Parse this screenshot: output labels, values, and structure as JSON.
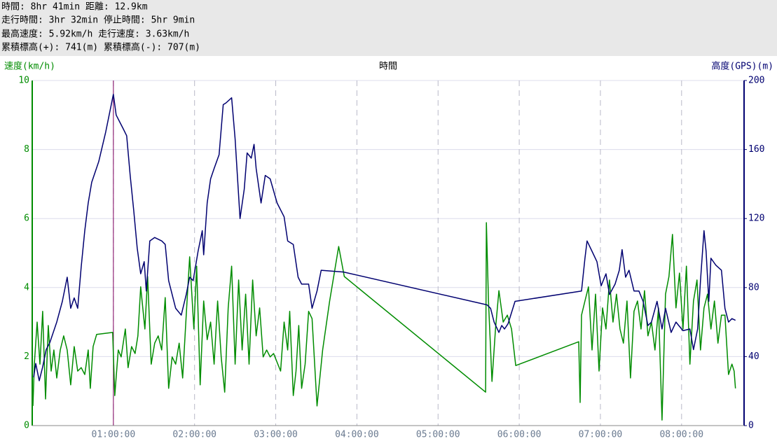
{
  "header": {
    "lines": [
      "時間: 8hr 41min 距離: 12.9km",
      "走行時間: 3hr 32min 停止時間: 5hr 9min",
      "最高速度: 5.92km/h 走行速度: 3.63km/h",
      "累積標高(+): 741(m) 累積標高(-): 707(m)"
    ]
  },
  "chart_data": {
    "type": "line",
    "x_label": "時間",
    "y_label": "速度(km/h)",
    "y2_label": "高度(GPS)(m)",
    "xlim": [
      0,
      8.77
    ],
    "xticks": [
      {
        "value": 1,
        "label": "01:00:00"
      },
      {
        "value": 2,
        "label": "02:00:00"
      },
      {
        "value": 3,
        "label": "03:00:00"
      },
      {
        "value": 4,
        "label": "04:00:00"
      },
      {
        "value": 5,
        "label": "05:00:00"
      },
      {
        "value": 6,
        "label": "06:00:00"
      },
      {
        "value": 7,
        "label": "07:00:00"
      },
      {
        "value": 8,
        "label": "08:00:00"
      }
    ],
    "ylim": [
      0,
      10
    ],
    "yticks": [
      0,
      2,
      4,
      6,
      8,
      10
    ],
    "y2lim": [
      0,
      200
    ],
    "y2ticks": [
      0,
      40,
      80,
      120,
      160,
      200
    ],
    "grid": true,
    "y_color": "#008c00",
    "y2_color": "#000070",
    "cursor_x": 1,
    "cursor_color": "#800060",
    "series": [
      {
        "color": "#000070",
        "axis": "y2",
        "x": [
          0.017,
          0.043,
          0.086,
          0.129,
          0.172,
          0.216,
          0.302,
          0.371,
          0.431,
          0.474,
          0.517,
          0.56,
          0.603,
          0.647,
          0.69,
          0.733,
          0.819,
          0.905,
          0.974,
          1.0,
          1.034,
          1.121,
          1.164,
          1.207,
          1.25,
          1.293,
          1.336,
          1.379,
          1.405,
          1.448,
          1.509,
          1.595,
          1.638,
          1.681,
          1.767,
          1.836,
          1.897,
          1.94,
          1.983,
          2.043,
          2.095,
          2.112,
          2.155,
          2.198,
          2.241,
          2.302,
          2.353,
          2.388,
          2.457,
          2.5,
          2.56,
          2.612,
          2.647,
          2.698,
          2.733,
          2.759,
          2.819,
          2.871,
          2.931,
          3.017,
          3.103,
          3.147,
          3.216,
          3.276,
          3.319,
          3.405,
          3.448,
          3.509,
          3.56,
          3.836,
          5.603,
          5.647,
          5.69,
          5.75,
          5.784,
          5.819,
          5.862,
          5.948,
          6.767,
          6.81,
          6.836,
          6.897,
          6.957,
          7.009,
          7.069,
          7.112,
          7.181,
          7.233,
          7.267,
          7.31,
          7.353,
          7.414,
          7.474,
          7.526,
          7.586,
          7.629,
          7.698,
          7.759,
          7.802,
          7.871,
          7.931,
          8.017,
          8.103,
          8.147,
          8.198,
          8.233,
          8.276,
          8.302,
          8.336,
          8.362,
          8.422,
          8.491,
          8.534,
          8.578,
          8.621,
          8.664
        ],
        "values": [
          28,
          36,
          26,
          34,
          44,
          48,
          60,
          72,
          86,
          68,
          74,
          68,
          92,
          113,
          129,
          141,
          153,
          170,
          186,
          192,
          180,
          172,
          168,
          145,
          125,
          103,
          88,
          95,
          78,
          107,
          109,
          107,
          105,
          84,
          68,
          64,
          76,
          86,
          84,
          101,
          113,
          99,
          129,
          143,
          149,
          157,
          186,
          187,
          190,
          166,
          120,
          137,
          158,
          155,
          163,
          149,
          129,
          145,
          143,
          129,
          121,
          107,
          105,
          86,
          82,
          82,
          68,
          78,
          90,
          89,
          70,
          68,
          60,
          54,
          58,
          56,
          59,
          72,
          78,
          97,
          107,
          101,
          95,
          81,
          88,
          76,
          82,
          90,
          102,
          86,
          90,
          78,
          78,
          72,
          58,
          60,
          72,
          56,
          68,
          54,
          60,
          55,
          56,
          44,
          56,
          84,
          113,
          101,
          72,
          97,
          93,
          90,
          68,
          60,
          62,
          61
        ]
      },
      {
        "color": "#008c00",
        "axis": "y",
        "x": [
          0.009,
          0.026,
          0.06,
          0.095,
          0.129,
          0.164,
          0.198,
          0.233,
          0.267,
          0.302,
          0.345,
          0.388,
          0.431,
          0.474,
          0.517,
          0.56,
          0.603,
          0.647,
          0.69,
          0.716,
          0.75,
          0.793,
          0.991,
          1.017,
          1.06,
          1.095,
          1.147,
          1.181,
          1.224,
          1.267,
          1.302,
          1.336,
          1.362,
          1.388,
          1.422,
          1.466,
          1.509,
          1.552,
          1.595,
          1.638,
          1.681,
          1.724,
          1.767,
          1.81,
          1.853,
          1.897,
          1.94,
          1.966,
          1.991,
          2.026,
          2.069,
          2.112,
          2.155,
          2.198,
          2.241,
          2.284,
          2.328,
          2.371,
          2.414,
          2.457,
          2.5,
          2.543,
          2.586,
          2.629,
          2.672,
          2.716,
          2.759,
          2.802,
          2.845,
          2.888,
          2.931,
          2.974,
          3.06,
          3.103,
          3.147,
          3.172,
          3.216,
          3.25,
          3.284,
          3.319,
          3.362,
          3.405,
          3.448,
          3.509,
          3.578,
          3.664,
          3.776,
          3.845,
          5.586,
          5.595,
          5.621,
          5.664,
          5.707,
          5.75,
          5.802,
          5.853,
          5.905,
          5.957,
          6.733,
          6.75,
          6.767,
          6.81,
          6.853,
          6.897,
          6.94,
          6.983,
          7.026,
          7.069,
          7.112,
          7.155,
          7.198,
          7.241,
          7.284,
          7.328,
          7.371,
          7.414,
          7.457,
          7.5,
          7.543,
          7.586,
          7.629,
          7.672,
          7.716,
          7.759,
          7.802,
          7.845,
          7.888,
          7.931,
          7.974,
          8.017,
          8.06,
          8.103,
          8.147,
          8.19,
          8.233,
          8.276,
          8.319,
          8.362,
          8.405,
          8.448,
          8.491,
          8.534,
          8.578,
          8.621,
          8.647,
          8.664
        ],
        "values": [
          0.57,
          1.78,
          3.0,
          1.78,
          3.31,
          0.77,
          2.9,
          1.58,
          2.19,
          1.38,
          2.19,
          2.6,
          2.19,
          1.18,
          2.29,
          1.58,
          1.68,
          1.48,
          2.19,
          1.08,
          2.29,
          2.64,
          2.7,
          0.87,
          2.19,
          1.99,
          2.8,
          1.68,
          2.29,
          2.09,
          2.6,
          4.02,
          3.41,
          2.8,
          4.32,
          1.78,
          2.39,
          2.6,
          2.19,
          3.71,
          1.08,
          1.99,
          1.78,
          2.39,
          1.38,
          3.2,
          4.89,
          3.81,
          2.8,
          4.62,
          1.18,
          3.61,
          2.49,
          3.0,
          1.78,
          3.61,
          1.99,
          0.97,
          3.41,
          4.62,
          1.78,
          4.22,
          2.19,
          3.81,
          1.78,
          4.22,
          2.6,
          3.41,
          1.99,
          2.19,
          1.99,
          2.09,
          1.58,
          3.0,
          2.19,
          3.31,
          0.87,
          1.58,
          2.9,
          1.08,
          1.78,
          3.31,
          3.1,
          0.57,
          2.19,
          3.61,
          5.19,
          4.32,
          0.97,
          5.88,
          3.61,
          1.28,
          2.8,
          3.91,
          3.0,
          3.2,
          2.8,
          1.74,
          2.43,
          0.67,
          3.2,
          3.61,
          4.02,
          2.19,
          3.81,
          1.58,
          3.41,
          2.8,
          4.22,
          3.0,
          3.81,
          2.8,
          2.39,
          3.61,
          1.38,
          3.31,
          3.61,
          2.8,
          3.91,
          2.6,
          3.0,
          2.19,
          3.41,
          0.16,
          3.81,
          4.32,
          5.54,
          3.41,
          4.42,
          2.8,
          4.62,
          1.78,
          3.61,
          4.22,
          2.19,
          3.41,
          3.81,
          2.8,
          3.61,
          2.39,
          3.2,
          3.2,
          1.48,
          1.78,
          1.58,
          1.08
        ]
      }
    ]
  }
}
